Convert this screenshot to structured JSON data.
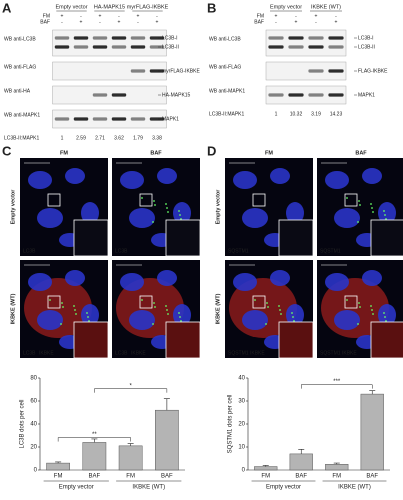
{
  "panels": {
    "A": {
      "letter": "A",
      "headers": [
        "Empty vector",
        "HA-MAPK15",
        "myrFLAG-IKBKE"
      ],
      "row_labels": [
        "FM",
        "BAF"
      ],
      "signs": [
        [
          "+",
          "-",
          "+",
          "-",
          "+",
          "-"
        ],
        [
          "-",
          "+",
          "-",
          "+",
          "-",
          "+"
        ]
      ],
      "blots": [
        {
          "label": "WB anti-LC3B",
          "bands": [
            "LC3B-I",
            "LC3B-II"
          ]
        },
        {
          "label": "WB anti-FLAG",
          "bands": [
            "myrFLAG-IKBKE"
          ]
        },
        {
          "label": "WB anti-HA",
          "bands": [
            "HA-MAPK15"
          ]
        },
        {
          "label": "WB anti-MAPK1",
          "bands": [
            "MAPK1"
          ]
        }
      ],
      "ratio_label": "LC3B-II:MAPK1",
      "ratios": [
        1,
        2.59,
        2.71,
        3.62,
        1.79,
        3.38
      ]
    },
    "B": {
      "letter": "B",
      "headers": [
        "Empty vector",
        "IKBKE (WT)"
      ],
      "row_labels": [
        "FM",
        "BAF"
      ],
      "signs": [
        [
          "+",
          "-",
          "+",
          "-"
        ],
        [
          "-",
          "+",
          "-",
          "+"
        ]
      ],
      "blots": [
        {
          "label": "WB anti-LC3B",
          "bands": [
            "LC3B-I",
            "LC3B-II"
          ]
        },
        {
          "label": "WB anti-FLAG",
          "bands": [
            "FLAG-IKBKE"
          ]
        },
        {
          "label": "WB anti-MAPK1",
          "bands": [
            "MAPK1"
          ]
        }
      ],
      "ratio_label": "LC3B-II:MAPK1",
      "ratios": [
        1,
        10.32,
        3.19,
        14.23
      ]
    },
    "C": {
      "letter": "C",
      "columns": [
        "FM",
        "BAF"
      ],
      "rows": [
        "Empty vector",
        "IKBKE (WT)"
      ],
      "channels": [
        "LC3B",
        "IKBKE"
      ]
    },
    "D": {
      "letter": "D",
      "columns": [
        "FM",
        "BAF"
      ],
      "rows": [
        "Empty vector",
        "IKBKE (WT)"
      ],
      "channels": [
        "SQSTM1",
        "IKBKE"
      ]
    }
  },
  "chart_data": [
    {
      "type": "bar",
      "ylabel": "LC3B dots per cell",
      "categories": [
        "FM",
        "BAF",
        "FM",
        "BAF"
      ],
      "groups": [
        "Empty vector",
        "IKBKE (WT)"
      ],
      "values": [
        6,
        24,
        21,
        52
      ],
      "errors": [
        1,
        3,
        2,
        10
      ],
      "color": "#b4b4b4",
      "ylim": [
        0,
        80
      ],
      "yticks": [
        0,
        20,
        40,
        60,
        80
      ],
      "significance": [
        {
          "from": 0,
          "to": 2,
          "label": "**"
        },
        {
          "from": 1,
          "to": 3,
          "label": "*"
        }
      ]
    },
    {
      "type": "bar",
      "ylabel": "SQSTM1 dots per cell",
      "categories": [
        "FM",
        "BAF",
        "FM",
        "BAF"
      ],
      "groups": [
        "Empty vector",
        "IKBKE (WT)"
      ],
      "values": [
        1.5,
        7,
        2.5,
        33
      ],
      "errors": [
        0.5,
        2,
        0.5,
        1.5
      ],
      "color": "#b4b4b4",
      "ylim": [
        0,
        40
      ],
      "yticks": [
        0,
        10,
        20,
        30,
        40
      ],
      "significance": [
        {
          "from": 1,
          "to": 3,
          "label": "***"
        }
      ]
    }
  ]
}
